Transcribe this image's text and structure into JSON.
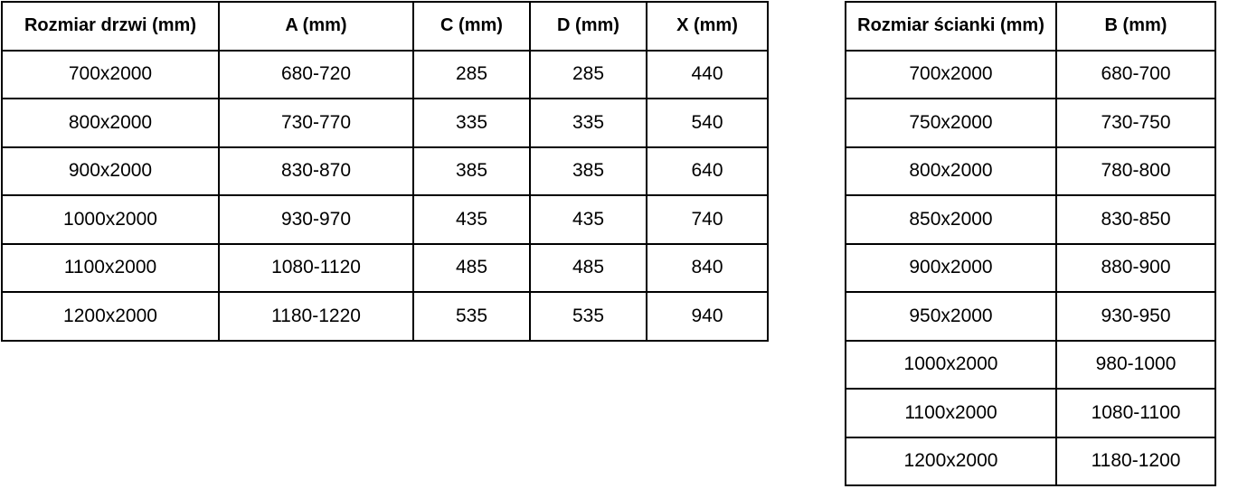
{
  "doors_table": {
    "name": "door-sizes",
    "headers": [
      "Rozmiar drzwi (mm)",
      "A (mm)",
      "C (mm)",
      "D (mm)",
      "X (mm)"
    ],
    "rows": [
      [
        "700x2000",
        "680-720",
        "285",
        "285",
        "440"
      ],
      [
        "800x2000",
        "730-770",
        "335",
        "335",
        "540"
      ],
      [
        "900x2000",
        "830-870",
        "385",
        "385",
        "640"
      ],
      [
        "1000x2000",
        "930-970",
        "435",
        "435",
        "740"
      ],
      [
        "1100x2000",
        "1080-1120",
        "485",
        "485",
        "840"
      ],
      [
        "1200x2000",
        "1180-1220",
        "535",
        "535",
        "940"
      ]
    ]
  },
  "wall_table": {
    "name": "wall-panel-sizes",
    "headers": [
      "Rozmiar ścianki (mm)",
      "B (mm)"
    ],
    "rows": [
      [
        "700x2000",
        "680-700"
      ],
      [
        "750x2000",
        "730-750"
      ],
      [
        "800x2000",
        "780-800"
      ],
      [
        "850x2000",
        "830-850"
      ],
      [
        "900x2000",
        "880-900"
      ],
      [
        "950x2000",
        "930-950"
      ],
      [
        "1000x2000",
        "980-1000"
      ],
      [
        "1100x2000",
        "1080-1100"
      ],
      [
        "1200x2000",
        "1180-1200"
      ]
    ]
  },
  "colors": {
    "border": "#000000",
    "text": "#000000",
    "background": "#ffffff"
  }
}
